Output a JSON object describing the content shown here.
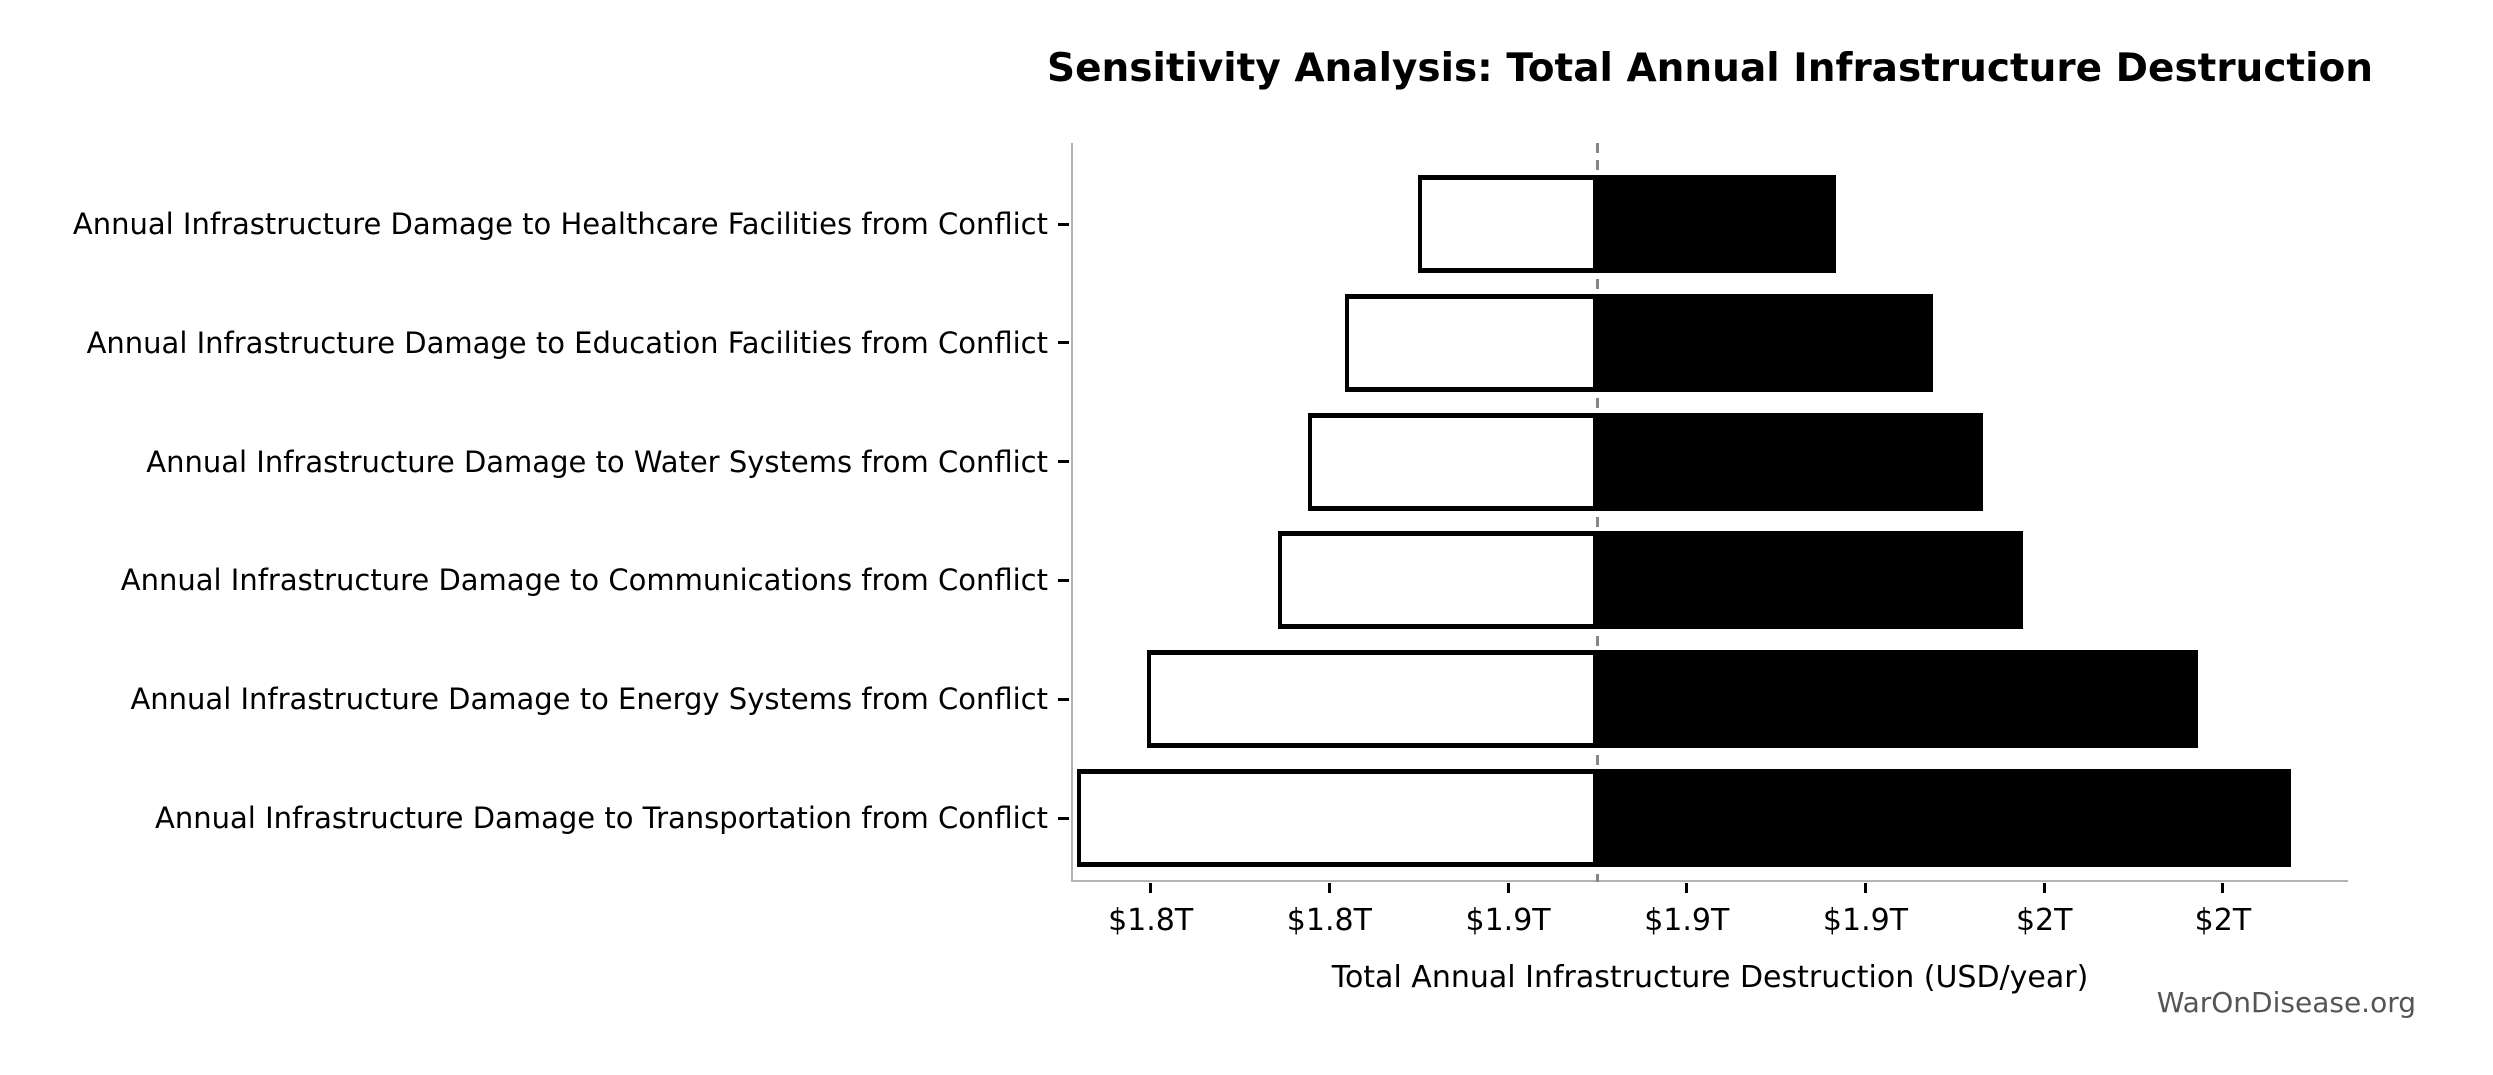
{
  "watermark": "WarOnDisease.org",
  "chart_data": {
    "type": "bar",
    "subtype": "tornado-sensitivity",
    "title": "Sensitivity Analysis: Total Annual Infrastructure Destruction",
    "xlabel": "Total Annual Infrastructure Destruction (USD/year)",
    "value_unit": "trillions USD per year",
    "baseline_value": 1.875,
    "xlim": [
      1.728,
      2.085
    ],
    "orientation": "horizontal",
    "grid": false,
    "legend": "none",
    "x_ticks": [
      {
        "value": 1.75,
        "label": "$1.8T"
      },
      {
        "value": 1.8,
        "label": "$1.8T"
      },
      {
        "value": 1.85,
        "label": "$1.9T"
      },
      {
        "value": 1.9,
        "label": "$1.9T"
      },
      {
        "value": 1.95,
        "label": "$1.9T"
      },
      {
        "value": 2.0,
        "label": "$2T"
      },
      {
        "value": 2.05,
        "label": "$2T"
      }
    ],
    "bars": [
      {
        "label": "Annual Infrastructure Damage to Healthcare Facilities from Conflict",
        "low": 1.8249,
        "high": 1.9418
      },
      {
        "label": "Annual Infrastructure Damage to Education Facilities from Conflict",
        "low": 1.8045,
        "high": 1.969
      },
      {
        "label": "Annual Infrastructure Damage to Water Systems from Conflict",
        "low": 1.794,
        "high": 1.983
      },
      {
        "label": "Annual Infrastructure Damage to Communications from Conflict",
        "low": 1.7856,
        "high": 1.9942
      },
      {
        "label": "Annual Infrastructure Damage to Energy Systems from Conflict",
        "low": 1.749,
        "high": 2.043
      },
      {
        "label": "Annual Infrastructure Damage to Transportation from Conflict",
        "low": 1.7295,
        "high": 2.069
      }
    ],
    "colors": {
      "high_side_fill": "#000000",
      "low_side_fill": "#ffffff",
      "bar_edge": "#000000",
      "baseline_line": "#878787",
      "spine": "#b4b4b4",
      "text": "#000000",
      "watermark": "#555555",
      "background": "#ffffff"
    }
  }
}
